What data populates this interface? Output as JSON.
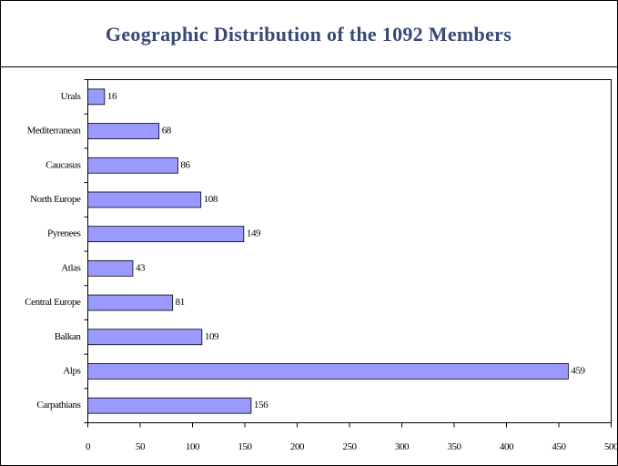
{
  "chart_data": {
    "type": "bar",
    "orientation": "horizontal",
    "title": "Geographic Distribution of the 1092 Members",
    "categories": [
      "Urals",
      "Mediterranean",
      "Caucasus",
      "North Europe",
      "Pyrenees",
      "Atlas",
      "Central Europe",
      "Balkan",
      "Alps",
      "Carpathians"
    ],
    "values": [
      16,
      68,
      86,
      108,
      149,
      43,
      81,
      109,
      459,
      156
    ],
    "color": "#9999ff",
    "xlim": [
      0,
      500
    ],
    "xticks": [
      0,
      50,
      100,
      150,
      200,
      250,
      300,
      350,
      400,
      450,
      500
    ],
    "grid": false
  }
}
